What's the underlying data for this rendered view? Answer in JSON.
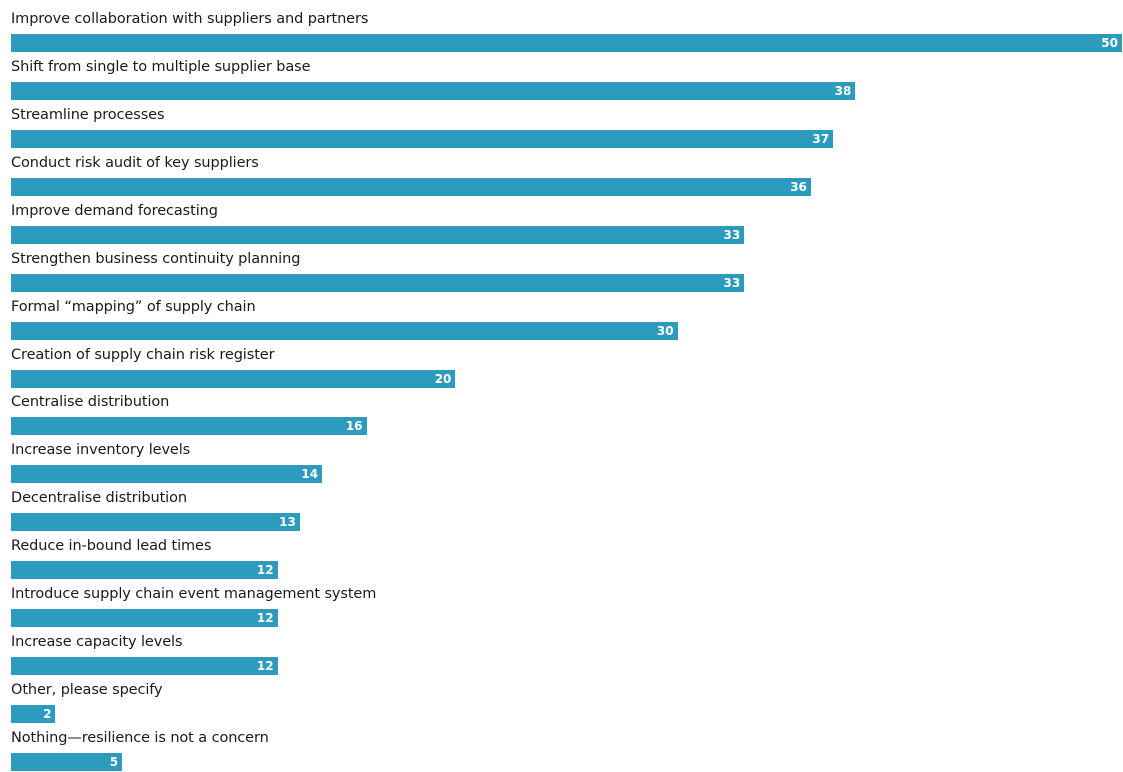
{
  "colors": {
    "bar": "#2c9bbd",
    "label_text": "#1a1a1a",
    "value_text": "#ffffff"
  },
  "chart_data": {
    "type": "bar",
    "orientation": "horizontal",
    "categories": [
      "Improve collaboration with suppliers and partners",
      "Shift from single to multiple supplier base",
      "Streamline processes",
      "Conduct risk audit of key suppliers",
      "Improve demand forecasting",
      "Strengthen business continuity planning",
      "Formal “mapping” of supply chain",
      "Creation of supply chain risk register",
      "Centralise distribution",
      "Increase inventory levels",
      "Decentralise distribution",
      "Reduce in-bound lead times",
      "Introduce supply chain event management system",
      "Increase capacity levels",
      "Other, please specify",
      "Nothing—resilience is not a concern"
    ],
    "values": [
      50,
      38,
      37,
      36,
      33,
      33,
      30,
      20,
      16,
      14,
      13,
      12,
      12,
      12,
      2,
      5
    ],
    "xlim": [
      0,
      50
    ],
    "grid": false,
    "legend": "none"
  }
}
